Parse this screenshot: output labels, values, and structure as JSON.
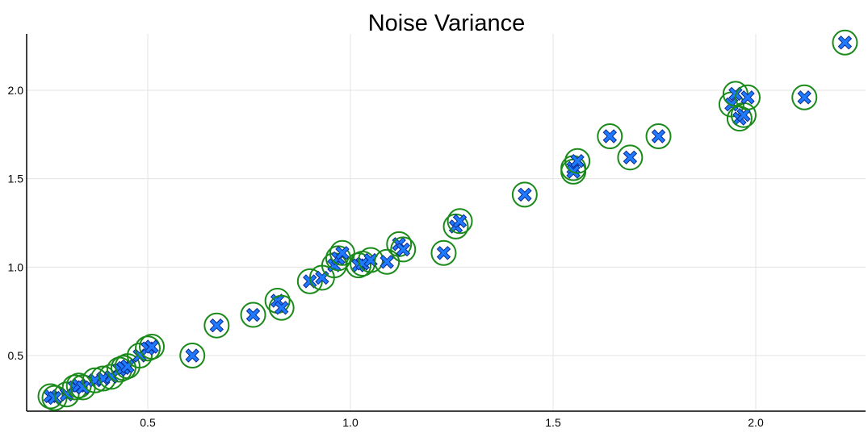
{
  "chart_data": {
    "type": "scatter",
    "title": "Noise Variance",
    "xlabel": "",
    "ylabel": "",
    "xlim": [
      0.2,
      2.27
    ],
    "ylim": [
      0.19,
      2.34
    ],
    "x_ticks": [
      "0.5",
      "1.0",
      "1.5",
      "2.0"
    ],
    "y_ticks": [
      "0.5",
      "1.0",
      "1.5",
      "2.0"
    ],
    "grid": true,
    "colors": {
      "marker_fill": "#1e7bff",
      "marker_edge": "#0b2a8f",
      "ring": "#1a8a1a"
    },
    "series": [
      {
        "points": [
          [
            0.26,
            0.27
          ],
          [
            0.27,
            0.26
          ],
          [
            0.3,
            0.28
          ],
          [
            0.32,
            0.32
          ],
          [
            0.33,
            0.33
          ],
          [
            0.34,
            0.32
          ],
          [
            0.37,
            0.36
          ],
          [
            0.39,
            0.37
          ],
          [
            0.41,
            0.38
          ],
          [
            0.43,
            0.42
          ],
          [
            0.44,
            0.43
          ],
          [
            0.45,
            0.44
          ],
          [
            0.48,
            0.5
          ],
          [
            0.5,
            0.54
          ],
          [
            0.51,
            0.55
          ],
          [
            0.61,
            0.5
          ],
          [
            0.67,
            0.67
          ],
          [
            0.76,
            0.73
          ],
          [
            0.82,
            0.81
          ],
          [
            0.83,
            0.77
          ],
          [
            0.9,
            0.92
          ],
          [
            0.93,
            0.94
          ],
          [
            0.96,
            1.01
          ],
          [
            0.97,
            1.05
          ],
          [
            0.98,
            1.08
          ],
          [
            1.02,
            1.01
          ],
          [
            1.03,
            1.02
          ],
          [
            1.05,
            1.04
          ],
          [
            1.09,
            1.03
          ],
          [
            1.12,
            1.13
          ],
          [
            1.13,
            1.1
          ],
          [
            1.23,
            1.08
          ],
          [
            1.26,
            1.23
          ],
          [
            1.27,
            1.26
          ],
          [
            1.43,
            1.41
          ],
          [
            1.55,
            1.56
          ],
          [
            1.55,
            1.54
          ],
          [
            1.56,
            1.6
          ],
          [
            1.64,
            1.74
          ],
          [
            1.69,
            1.62
          ],
          [
            1.76,
            1.74
          ],
          [
            1.94,
            1.92
          ],
          [
            1.95,
            1.98
          ],
          [
            1.96,
            1.84
          ],
          [
            1.97,
            1.86
          ],
          [
            1.98,
            1.96
          ],
          [
            2.12,
            1.96
          ],
          [
            2.22,
            2.27
          ]
        ]
      }
    ]
  }
}
